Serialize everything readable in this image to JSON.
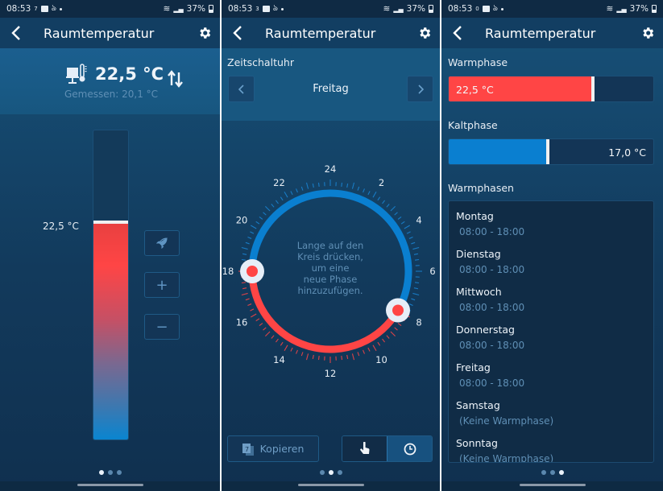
{
  "status_bar": {
    "time": "08:53",
    "battery": "37%",
    "net_speeds": [
      "7",
      "3",
      "0"
    ]
  },
  "header": {
    "title": "Raumtemperatur",
    "back_icon": "chevron-left-icon",
    "settings_icon": "gear-icon"
  },
  "panel1": {
    "setpoint": "22,5 °C",
    "measured": "Gemessen: 20,1 °C",
    "bar_label": "22,5 °C",
    "bar_fill_percent": 70,
    "buttons": {
      "boost": "rocket-icon",
      "plus": "+",
      "minus": "−"
    },
    "page_index": 0
  },
  "panel2": {
    "section": "Zeitschaltuhr",
    "day": "Freitag",
    "prev_label": "<",
    "next_label": ">",
    "clock_labels": [
      "24",
      "2",
      "4",
      "6",
      "8",
      "10",
      "12",
      "14",
      "16",
      "18",
      "20",
      "22"
    ],
    "hint": [
      "Lange auf den",
      "Kreis drücken,",
      "um eine",
      "neue Phase",
      "hinzuzufügen."
    ],
    "warm_phase": {
      "start": 8,
      "end": 18
    },
    "copy_label": "Kopieren",
    "mode_options": [
      "hand-pointer-icon",
      "clock-icon"
    ],
    "mode_active": 1,
    "page_index": 1
  },
  "panel3": {
    "warm_label": "Warmphase",
    "warm_value": "22,5 °C",
    "cold_label": "Kaltphase",
    "cold_value": "17,0 °C",
    "list_label": "Warmphasen",
    "schedule": [
      {
        "day": "Montag",
        "time": "08:00 - 18:00"
      },
      {
        "day": "Dienstag",
        "time": "08:00 - 18:00"
      },
      {
        "day": "Mittwoch",
        "time": "08:00 - 18:00"
      },
      {
        "day": "Donnerstag",
        "time": "08:00 - 18:00"
      },
      {
        "day": "Freitag",
        "time": "08:00 - 18:00"
      },
      {
        "day": "Samstag",
        "time": "(Keine Warmphase)"
      },
      {
        "day": "Sonntag",
        "time": "(Keine Warmphase)"
      }
    ],
    "page_index": 2
  },
  "colors": {
    "warm": "#ff4545",
    "cold": "#0a7fd0",
    "background": "#123a5c",
    "header": "#123e62"
  }
}
